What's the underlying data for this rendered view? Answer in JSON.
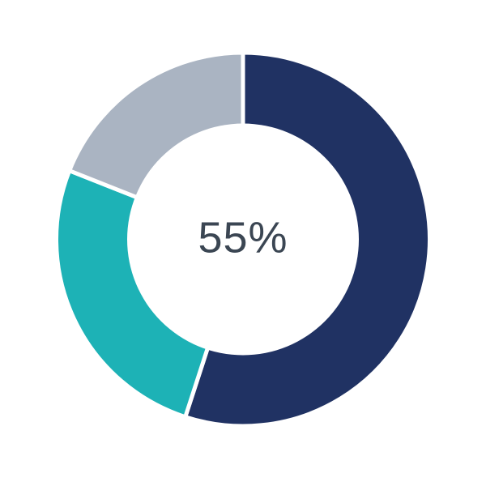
{
  "canvas": {
    "background_color": "#FFFFFF"
  },
  "chart_data": {
    "type": "pie",
    "subtype": "donut",
    "title": "",
    "values": [
      55,
      26,
      19
    ],
    "colors": [
      "#203263",
      "#1DB2B6",
      "#AAB4C2"
    ],
    "segments": [
      {
        "color_name": "navy",
        "color": "#203263",
        "value": 55
      },
      {
        "color_name": "teal",
        "color": "#1DB2B6",
        "value": 26
      },
      {
        "color_name": "gray",
        "color": "#AAB4C2",
        "value": 19
      }
    ],
    "center_label": "55%",
    "center_label_color": "#3B4653",
    "start_angle_deg": 0,
    "direction": "clockwise",
    "inner_radius_ratio": 0.62,
    "separator_color": "#FFFFFF",
    "separator_width": 5,
    "legend": "none",
    "labels_visible": false
  }
}
